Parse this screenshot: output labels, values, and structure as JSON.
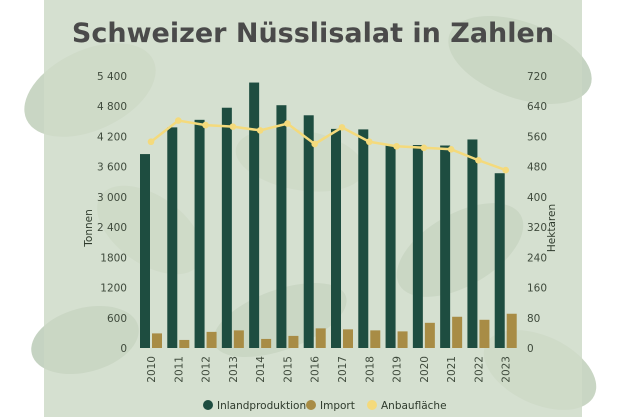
{
  "colors": {
    "inland": "#1e4d40",
    "import": "#a88c45",
    "area": "#f4da7c"
  },
  "chart_data": {
    "type": "bar",
    "title": "Schweizer Nüsslisalat in Zahlen",
    "categories": [
      "2010",
      "2011",
      "2012",
      "2013",
      "2014",
      "2015",
      "2016",
      "2017",
      "2018",
      "2019",
      "2020",
      "2021",
      "2022",
      "2023"
    ],
    "y_left": {
      "label": "Tonnen",
      "range": [
        0,
        5400
      ],
      "ticks": [
        0,
        600,
        1200,
        1800,
        2400,
        3000,
        3600,
        4200,
        4800,
        5400
      ],
      "tick_labels": [
        "0",
        "600",
        "1200",
        "1800",
        "2 400",
        "3 000",
        "3 600",
        "4 200",
        "4 800",
        "5 400"
      ]
    },
    "y_right": {
      "label": "Hektaren",
      "range": [
        0,
        720
      ],
      "ticks": [
        0,
        80,
        160,
        240,
        320,
        400,
        480,
        560,
        640,
        720
      ],
      "tick_labels": [
        "0",
        "80",
        "160",
        "240",
        "320",
        "400",
        "480",
        "560",
        "640",
        "720"
      ]
    },
    "series": [
      {
        "name": "Inlandproduktion",
        "kind": "bar",
        "axis": "left",
        "values": [
          3850,
          4380,
          4530,
          4770,
          5270,
          4820,
          4620,
          4350,
          4340,
          4030,
          4030,
          4020,
          4140,
          3470
        ]
      },
      {
        "name": "Import",
        "kind": "bar",
        "axis": "left",
        "values": [
          290,
          160,
          320,
          350,
          180,
          240,
          390,
          370,
          350,
          330,
          500,
          620,
          560,
          680
        ]
      },
      {
        "name": "Anbaufläche",
        "kind": "line",
        "axis": "right",
        "values": [
          546,
          602,
          590,
          586,
          576,
          594,
          540,
          584,
          546,
          534,
          530,
          526,
          497,
          471
        ]
      }
    ],
    "legend": {
      "position": "bottom",
      "items": [
        "Inlandproduktion",
        "Import",
        "Anbaufläche"
      ]
    },
    "grid": false
  }
}
